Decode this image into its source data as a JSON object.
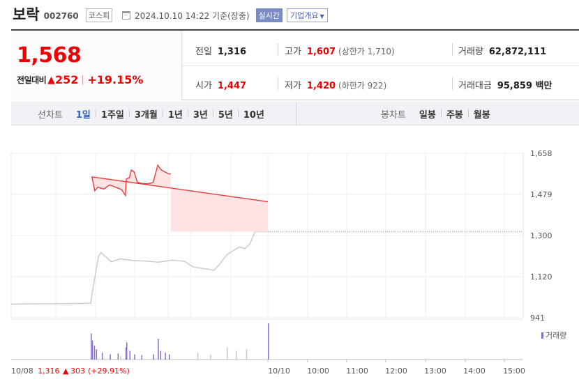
{
  "header": {
    "stock_name": "보락",
    "stock_code": "002760",
    "market": "코스피",
    "timestamp": "2024.10.10 14:22 기준(장중)",
    "realtime_label": "실시간",
    "company_overview_label": "기업개요",
    "calendar_icon": "calendar-icon"
  },
  "quote": {
    "current_price": "1,568",
    "compare_label": "전일대비",
    "change_value": "252",
    "change_pct": "+19.15%",
    "prev_close_label": "전일",
    "prev_close": "1,316",
    "high_label": "고가",
    "high": "1,607",
    "upper_limit": "(상한가 1,710)",
    "volume_label": "거래량",
    "volume": "62,872,111",
    "open_label": "시가",
    "open": "1,447",
    "low_label": "저가",
    "low": "1,420",
    "lower_limit": "(하한가 922)",
    "value_label": "거래대금",
    "value": "95,859 백만",
    "up_color": "#e00000"
  },
  "tabs": {
    "line_label": "선차트",
    "line_items": [
      "1일",
      "1주일",
      "3개월",
      "1년",
      "3년",
      "5년",
      "10년"
    ],
    "line_active": 0,
    "candle_label": "봉차트",
    "candle_items": [
      "일봉",
      "주봉",
      "월봉"
    ]
  },
  "chart_data": {
    "type": "line",
    "y_ticks": [
      "1,658",
      "1,479",
      "1,300",
      "1,120",
      "941"
    ],
    "ylim": [
      941,
      1658
    ],
    "prev_close": 1316,
    "x_labels": [
      "10/10",
      "10:00",
      "11:00",
      "12:00",
      "13:00",
      "14:00",
      "15:00"
    ],
    "volume_legend": "거래량",
    "prev_day_summary": {
      "date": "10/08",
      "close": "1,316",
      "change": "303",
      "pct": "(+29.91%)"
    },
    "series": [
      {
        "segment": "previous-day",
        "color": "#c8c8c8",
        "x": [
          0,
          0.3,
          0.5,
          0.62,
          0.63,
          0.68,
          0.7,
          0.78,
          0.85,
          0.95,
          1.05,
          1.15,
          1.25,
          1.35,
          1.42,
          1.5,
          1.58,
          1.62,
          1.68,
          1.72,
          1.78,
          1.82,
          1.86,
          1.9,
          1.95,
          2.0
        ],
        "values": [
          1000,
          1002,
          1003,
          1004,
          1045,
          1208,
          1225,
          1185,
          1198,
          1190,
          1188,
          1183,
          1192,
          1187,
          1162,
          1155,
          1148,
          1172,
          1215,
          1230,
          1250,
          1242,
          1262,
          1316,
          1316,
          1316
        ]
      },
      {
        "segment": "today",
        "color": "#e83a3a",
        "x": [
          2.0,
          2.05,
          2.12,
          2.2,
          2.35,
          2.5,
          2.65,
          2.8,
          2.9,
          2.92,
          3.0,
          3.05,
          3.12,
          3.2,
          3.3,
          3.45,
          3.6,
          3.72,
          3.75,
          3.82,
          3.92,
          4.0,
          4.05
        ],
        "values": [
          1447,
          1555,
          1495,
          1510,
          1502,
          1520,
          1510,
          1500,
          1474,
          1545,
          1552,
          1585,
          1577,
          1532,
          1527,
          1525,
          1530,
          1606,
          1598,
          1584,
          1575,
          1568,
          1568
        ]
      }
    ],
    "volume_scale_note": "relative",
    "volume": {
      "x": [
        0.85,
        1.45,
        1.55,
        1.68,
        1.75,
        1.83,
        2.0,
        2.02,
        2.05,
        2.1,
        2.15,
        2.3,
        2.5,
        2.7,
        2.9,
        2.92,
        3.0,
        3.12,
        3.3,
        3.6,
        3.72,
        3.78,
        3.9,
        4.0
      ],
      "values": [
        4,
        8,
        6,
        14,
        10,
        12,
        42,
        30,
        22,
        16,
        12,
        8,
        6,
        7,
        14,
        20,
        10,
        6,
        5,
        6,
        24,
        10,
        8,
        6
      ]
    }
  }
}
